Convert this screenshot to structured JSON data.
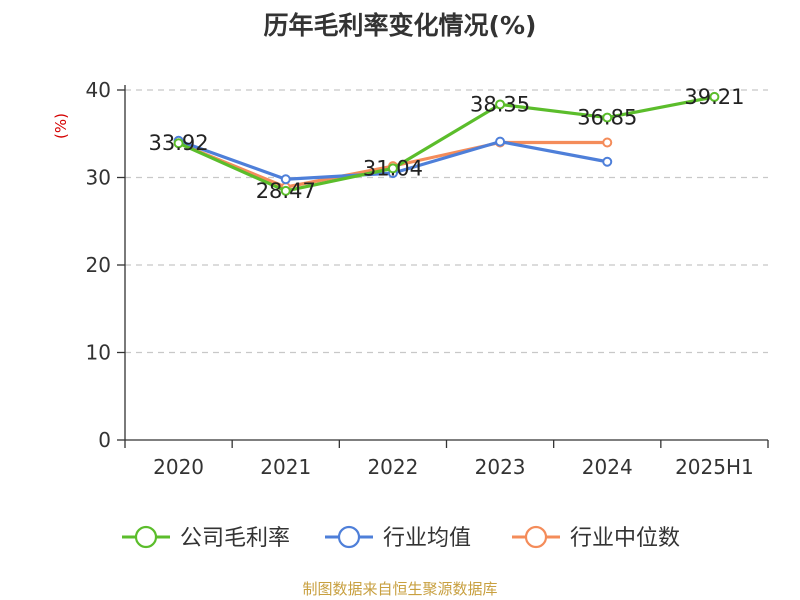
{
  "title": "历年毛利率变化情况(%)",
  "source": "制图数据来自恒生聚源数据库",
  "chart_data": {
    "type": "line",
    "ylabel": "(%)",
    "ylim": [
      0,
      40
    ],
    "yticks": [
      0,
      10,
      20,
      30,
      40
    ],
    "grid": true,
    "legend_position": "bottom",
    "categories": [
      "2020",
      "2021",
      "2022",
      "2023",
      "2024",
      "2025H1"
    ],
    "series": [
      {
        "name": "公司毛利率",
        "color": "#5bbd2b",
        "values": [
          33.92,
          28.47,
          31.04,
          38.35,
          36.85,
          39.21
        ],
        "labels": [
          "33.92",
          "28.47",
          "31.04",
          "38.35",
          "36.85",
          "39.21"
        ]
      },
      {
        "name": "行业均值",
        "color": "#4e7fd9",
        "values": [
          34.2,
          29.8,
          30.5,
          34.1,
          31.8,
          null
        ]
      },
      {
        "name": "行业中位数",
        "color": "#f48c5a",
        "values": [
          33.92,
          28.9,
          31.3,
          34.0,
          34.0,
          null
        ]
      }
    ]
  }
}
